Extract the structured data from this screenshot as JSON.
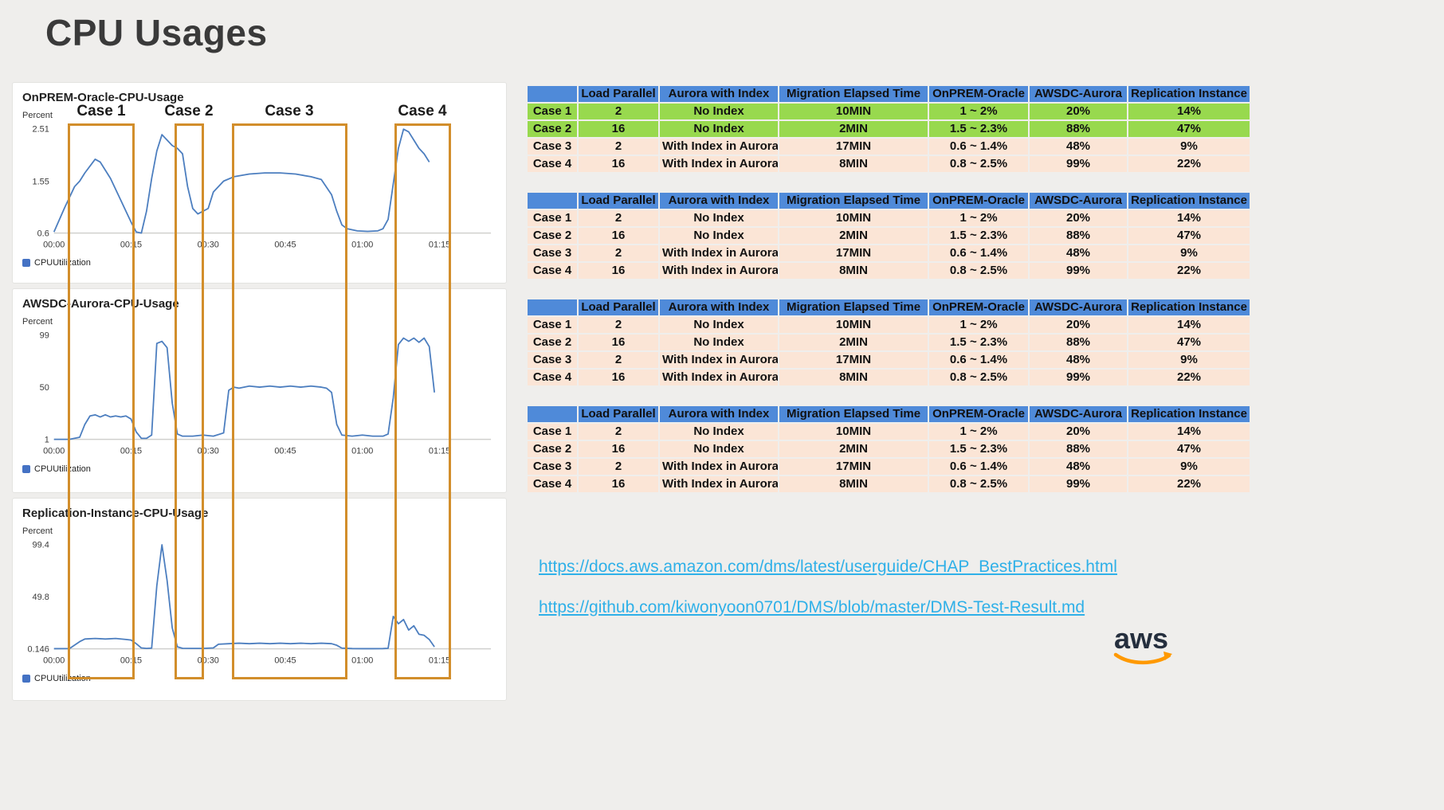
{
  "page": {
    "title": "CPU Usages"
  },
  "chart_data": [
    {
      "type": "line",
      "title": "OnPREM-Oracle-CPU-Usage",
      "ylabel": "Percent",
      "legend": "CPUUtilization",
      "line_color": "#4c7ebf",
      "x_range": [
        0,
        85
      ],
      "y_range": [
        0.6,
        2.51
      ],
      "yticks": [
        {
          "v": 2.51,
          "label": "2.51"
        },
        {
          "v": 1.55,
          "label": "1.55"
        },
        {
          "v": 0.6,
          "label": "0.6"
        }
      ],
      "xticks": [
        "00:00",
        "00:15",
        "00:30",
        "00:45",
        "01:00",
        "01:15"
      ],
      "xtick_pos": [
        0,
        15,
        30,
        45,
        60,
        75
      ],
      "points": [
        [
          0,
          0.62
        ],
        [
          2,
          1.05
        ],
        [
          4,
          1.45
        ],
        [
          5,
          1.55
        ],
        [
          6,
          1.7
        ],
        [
          8,
          1.95
        ],
        [
          9,
          1.9
        ],
        [
          11,
          1.6
        ],
        [
          13,
          1.2
        ],
        [
          15,
          0.8
        ],
        [
          16,
          0.62
        ],
        [
          17,
          0.6
        ],
        [
          18,
          1.0
        ],
        [
          19,
          1.6
        ],
        [
          20,
          2.1
        ],
        [
          21,
          2.4
        ],
        [
          22,
          2.3
        ],
        [
          23,
          2.2
        ],
        [
          24,
          2.15
        ],
        [
          25,
          2.05
        ],
        [
          26,
          1.45
        ],
        [
          27,
          1.05
        ],
        [
          28,
          0.95
        ],
        [
          29,
          1.0
        ],
        [
          30,
          1.05
        ],
        [
          31,
          1.35
        ],
        [
          33,
          1.55
        ],
        [
          35,
          1.63
        ],
        [
          38,
          1.68
        ],
        [
          41,
          1.7
        ],
        [
          44,
          1.7
        ],
        [
          47,
          1.68
        ],
        [
          50,
          1.63
        ],
        [
          52,
          1.58
        ],
        [
          54,
          1.3
        ],
        [
          55,
          1.0
        ],
        [
          56,
          0.75
        ],
        [
          57,
          0.68
        ],
        [
          59,
          0.64
        ],
        [
          61,
          0.63
        ],
        [
          63,
          0.64
        ],
        [
          64,
          0.68
        ],
        [
          65,
          0.85
        ],
        [
          66,
          1.5
        ],
        [
          67,
          2.15
        ],
        [
          68,
          2.5
        ],
        [
          69,
          2.45
        ],
        [
          70,
          2.3
        ],
        [
          71,
          2.15
        ],
        [
          72,
          2.05
        ],
        [
          73,
          1.9
        ]
      ]
    },
    {
      "type": "line",
      "title": "AWSDC-Aurora-CPU-Usage",
      "ylabel": "Percent",
      "legend": "CPUUtilization",
      "line_color": "#4c7ebf",
      "x_range": [
        0,
        85
      ],
      "y_range": [
        1,
        99
      ],
      "yticks": [
        {
          "v": 99,
          "label": "99"
        },
        {
          "v": 50,
          "label": "50"
        },
        {
          "v": 1,
          "label": "1"
        }
      ],
      "xticks": [
        "00:00",
        "00:15",
        "00:30",
        "00:45",
        "01:00",
        "01:15"
      ],
      "xtick_pos": [
        0,
        15,
        30,
        45,
        60,
        75
      ],
      "points": [
        [
          0,
          1
        ],
        [
          3,
          1
        ],
        [
          5,
          3
        ],
        [
          6,
          15
        ],
        [
          7,
          23
        ],
        [
          8,
          24
        ],
        [
          9,
          22
        ],
        [
          10,
          24
        ],
        [
          11,
          22
        ],
        [
          12,
          23
        ],
        [
          13,
          22
        ],
        [
          14,
          23
        ],
        [
          15,
          20
        ],
        [
          16,
          8
        ],
        [
          17,
          2
        ],
        [
          18,
          2
        ],
        [
          19,
          5
        ],
        [
          20,
          91
        ],
        [
          21,
          93
        ],
        [
          22,
          87
        ],
        [
          23,
          35
        ],
        [
          24,
          6
        ],
        [
          25,
          4
        ],
        [
          27,
          4
        ],
        [
          29,
          5
        ],
        [
          31,
          4
        ],
        [
          33,
          7
        ],
        [
          34,
          47
        ],
        [
          35,
          50
        ],
        [
          36,
          49
        ],
        [
          38,
          51
        ],
        [
          40,
          50
        ],
        [
          42,
          51
        ],
        [
          44,
          50
        ],
        [
          46,
          51
        ],
        [
          48,
          50
        ],
        [
          50,
          51
        ],
        [
          52,
          50
        ],
        [
          53,
          49
        ],
        [
          54,
          45
        ],
        [
          55,
          15
        ],
        [
          56,
          5
        ],
        [
          58,
          4
        ],
        [
          60,
          5
        ],
        [
          62,
          4
        ],
        [
          64,
          4
        ],
        [
          65,
          6
        ],
        [
          66,
          40
        ],
        [
          67,
          90
        ],
        [
          68,
          96
        ],
        [
          69,
          93
        ],
        [
          70,
          96
        ],
        [
          71,
          92
        ],
        [
          72,
          96
        ],
        [
          73,
          88
        ],
        [
          74,
          45
        ]
      ]
    },
    {
      "type": "line",
      "title": "Replication-Instance-CPU-Usage",
      "ylabel": "Percent",
      "legend": "CPUUtilization",
      "line_color": "#4c7ebf",
      "x_range": [
        0,
        85
      ],
      "y_range": [
        0.146,
        99.4
      ],
      "yticks": [
        {
          "v": 99.4,
          "label": "99.4"
        },
        {
          "v": 49.8,
          "label": "49.8"
        },
        {
          "v": 0.146,
          "label": "0.146"
        }
      ],
      "xticks": [
        "00:00",
        "00:15",
        "00:30",
        "00:45",
        "01:00",
        "01:15"
      ],
      "xtick_pos": [
        0,
        15,
        30,
        45,
        60,
        75
      ],
      "points": [
        [
          0,
          0.3
        ],
        [
          3,
          0.4
        ],
        [
          5,
          7
        ],
        [
          6,
          9.5
        ],
        [
          8,
          10
        ],
        [
          10,
          9.5
        ],
        [
          12,
          10
        ],
        [
          14,
          9
        ],
        [
          15,
          8.5
        ],
        [
          16,
          5
        ],
        [
          17,
          1
        ],
        [
          18,
          0.5
        ],
        [
          19,
          0.8
        ],
        [
          20,
          60
        ],
        [
          21,
          99
        ],
        [
          22,
          65
        ],
        [
          23,
          20
        ],
        [
          24,
          2
        ],
        [
          25,
          0.6
        ],
        [
          27,
          0.5
        ],
        [
          29,
          0.5
        ],
        [
          31,
          1
        ],
        [
          32,
          4.5
        ],
        [
          34,
          5
        ],
        [
          36,
          5.5
        ],
        [
          38,
          5
        ],
        [
          40,
          5.5
        ],
        [
          42,
          5
        ],
        [
          44,
          5.5
        ],
        [
          46,
          5
        ],
        [
          48,
          5.5
        ],
        [
          50,
          5
        ],
        [
          52,
          5.5
        ],
        [
          54,
          5
        ],
        [
          55,
          3.5
        ],
        [
          56,
          0.8
        ],
        [
          58,
          0.4
        ],
        [
          60,
          0.3
        ],
        [
          62,
          0.3
        ],
        [
          64,
          0.4
        ],
        [
          65,
          0.6
        ],
        [
          66,
          31
        ],
        [
          67,
          24
        ],
        [
          68,
          28
        ],
        [
          69,
          18
        ],
        [
          70,
          22
        ],
        [
          71,
          14
        ],
        [
          72,
          13
        ],
        [
          73,
          9
        ],
        [
          74,
          2
        ]
      ]
    }
  ],
  "cases": [
    {
      "label": "Case 1"
    },
    {
      "label": "Case 2"
    },
    {
      "label": "Case 3"
    },
    {
      "label": "Case 4"
    }
  ],
  "tables": {
    "headers": [
      "",
      "Load Parallel",
      "Aurora with Index",
      "Migration Elapsed Time",
      "OnPREM-Oracle",
      "AWSDC-Aurora",
      "Replication Instance"
    ],
    "rows": [
      [
        "Case 1",
        "2",
        "No Index",
        "10MIN",
        "1 ~ 2%",
        "20%",
        "14%"
      ],
      [
        "Case 2",
        "16",
        "No Index",
        "2MIN",
        "1.5 ~ 2.3%",
        "88%",
        "47%"
      ],
      [
        "Case 3",
        "2",
        "With Index in Aurora",
        "17MIN",
        "0.6 ~ 1.4%",
        "48%",
        "9%"
      ],
      [
        "Case 4",
        "16",
        "With Index in Aurora",
        "8MIN",
        "0.8 ~ 2.5%",
        "99%",
        "22%"
      ]
    ],
    "instances": [
      {
        "row_bg": [
          "green",
          "green",
          "peach",
          "peach"
        ]
      },
      {
        "row_bg": [
          "peach",
          "peach",
          "peach",
          "peach"
        ]
      },
      {
        "row_bg": [
          "peach",
          "peach",
          "peach",
          "peach"
        ]
      },
      {
        "row_bg": [
          "peach",
          "peach",
          "peach",
          "peach"
        ]
      }
    ],
    "colors": {
      "header_bg": "#4f8ad9",
      "green": "#98d94e",
      "peach": "#fbe5d6"
    }
  },
  "links": [
    {
      "text": "https://docs.aws.amazon.com/dms/latest/userguide/CHAP_BestPractices.html"
    },
    {
      "text": "https://github.com/kiwonyoon0701/DMS/blob/master/DMS-Test-Result.md"
    }
  ],
  "logo": {
    "text": "aws"
  }
}
